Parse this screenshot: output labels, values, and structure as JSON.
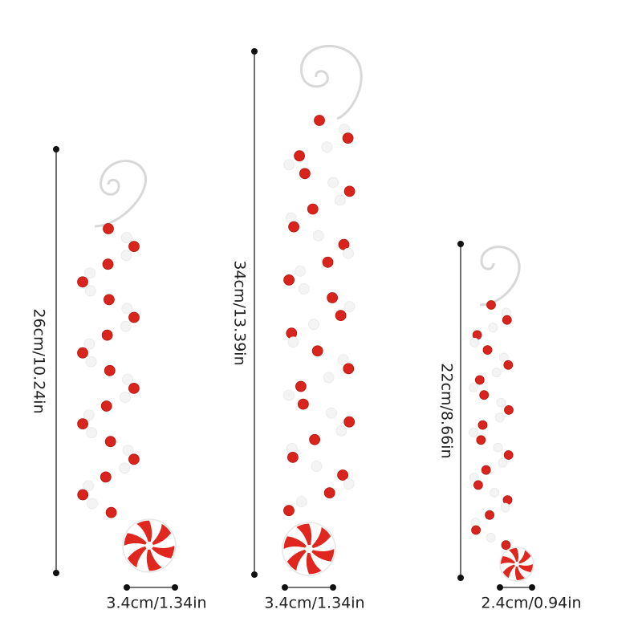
{
  "items": [
    {
      "height": "26cm/10.24in",
      "width": "3.4cm/1.34in"
    },
    {
      "height": "34cm/13.39in",
      "width": "3.4cm/1.34in"
    },
    {
      "height": "22cm/8.66in",
      "width": "2.4cm/0.94in"
    }
  ]
}
